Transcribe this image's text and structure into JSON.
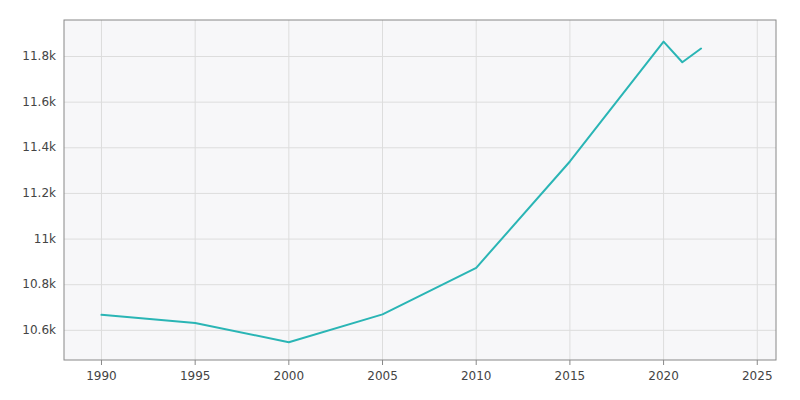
{
  "chart_data": {
    "type": "line",
    "x": [
      1990,
      1995,
      2000,
      2005,
      2010,
      2015,
      2020,
      2021,
      2022
    ],
    "values": [
      10668,
      10632,
      10548,
      10670,
      10874,
      11340,
      11865,
      11775,
      11835
    ],
    "color": "#2ab5b5",
    "xlim": [
      1988,
      2026
    ],
    "ylim": [
      10470,
      11960
    ],
    "xticks": [
      1990,
      1995,
      2000,
      2005,
      2010,
      2015,
      2020,
      2025
    ],
    "yticks": [
      {
        "value": 10600,
        "label": "10.6k"
      },
      {
        "value": 10800,
        "label": "10.8k"
      },
      {
        "value": 11000,
        "label": "11k"
      },
      {
        "value": 11200,
        "label": "11.2k"
      },
      {
        "value": 11400,
        "label": "11.4k"
      },
      {
        "value": 11600,
        "label": "11.6k"
      },
      {
        "value": 11800,
        "label": "11.8k"
      }
    ],
    "grid": true
  }
}
